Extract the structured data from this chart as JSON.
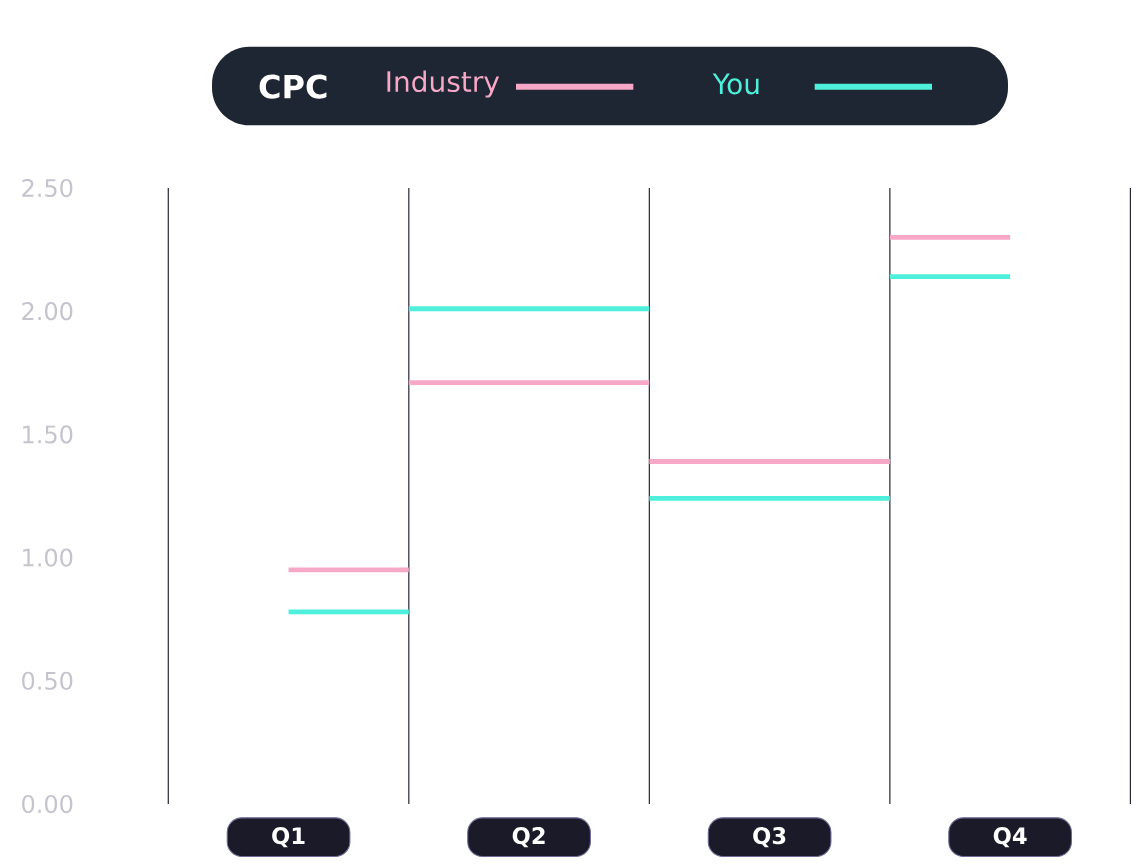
{
  "chart_data": {
    "type": "step",
    "legend_title": "CPC",
    "legend": "top",
    "categories": [
      "Q1",
      "Q2",
      "Q3",
      "Q4"
    ],
    "series": [
      {
        "name": "Industry",
        "color": "#f7a8c6",
        "values": [
          0.95,
          1.71,
          1.39,
          2.3
        ]
      },
      {
        "name": "You",
        "color": "#4ef0dc",
        "values": [
          0.78,
          2.01,
          1.24,
          2.14
        ]
      }
    ],
    "ylim": [
      0,
      2.5
    ],
    "yticks": [
      {
        "value": 0,
        "label": "0.00"
      },
      {
        "value": 0.5,
        "label": "0.50"
      },
      {
        "value": 1,
        "label": "1.00"
      },
      {
        "value": 1.5,
        "label": "1.50"
      },
      {
        "value": 2,
        "label": "2.00"
      },
      {
        "value": 2.5,
        "label": "2.50"
      }
    ],
    "grid": "x",
    "marker": "none",
    "line_style": "solid"
  }
}
